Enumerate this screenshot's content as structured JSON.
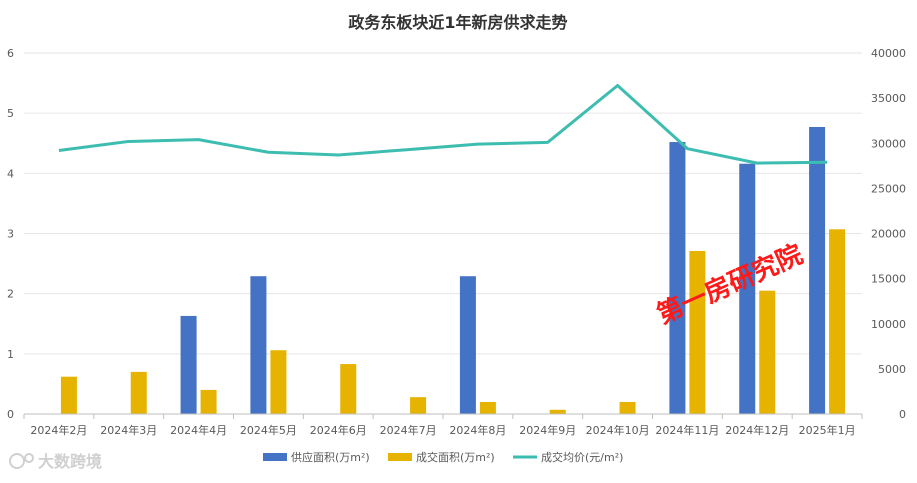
{
  "chart_data": {
    "type": "bar",
    "title": "政务东板块近1年新房供求走势",
    "categories": [
      "2024年2月",
      "2024年3月",
      "2024年4月",
      "2024年5月",
      "2024年6月",
      "2024年7月",
      "2024年8月",
      "2024年9月",
      "2024年10月",
      "2024年11月",
      "2024年12月",
      "2025年1月"
    ],
    "series": [
      {
        "name": "供应面积(万m²)",
        "kind": "bar",
        "axis": "left",
        "color": "#4472c4",
        "values": [
          0,
          0,
          1.63,
          2.29,
          0,
          0,
          2.29,
          0,
          0,
          4.52,
          4.16,
          4.77
        ]
      },
      {
        "name": "成交面积(万m²)",
        "kind": "bar",
        "axis": "left",
        "color": "#e6b400",
        "values": [
          0.62,
          0.7,
          0.4,
          1.06,
          0.83,
          0.28,
          0.2,
          0.07,
          0.2,
          2.71,
          2.05,
          3.07
        ]
      },
      {
        "name": "成交均价(元/m²)",
        "kind": "line",
        "axis": "right",
        "color": "#3dbdb0",
        "values": [
          29200,
          30200,
          30400,
          29000,
          28700,
          29300,
          29900,
          30100,
          36400,
          29400,
          27800,
          27900
        ]
      }
    ],
    "ylim_left": [
      0,
      6
    ],
    "yticks_left": [
      "0",
      "1",
      "2",
      "3",
      "4",
      "5",
      "6"
    ],
    "ylim_right": [
      0,
      40000
    ],
    "yticks_right": [
      "0",
      "5000",
      "10000",
      "15000",
      "20000",
      "25000",
      "30000",
      "35000",
      "40000"
    ],
    "grid": true,
    "legend_position": "bottom"
  },
  "watermark": "第一房研究院",
  "logo": {
    "text": "大数跨境",
    "icon": "logo-icon"
  }
}
